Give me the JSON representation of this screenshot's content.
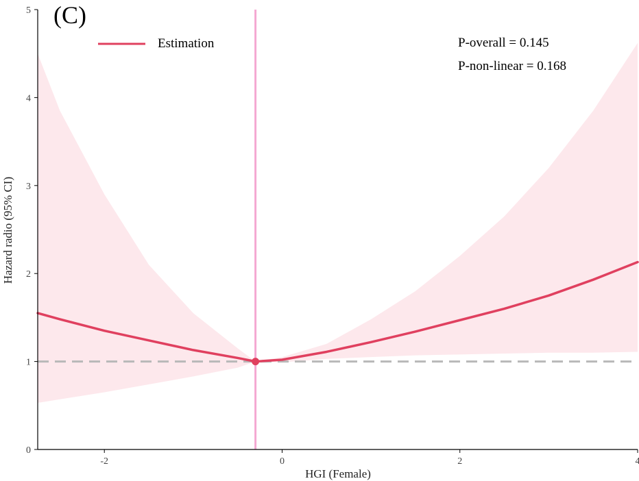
{
  "chart_data": {
    "type": "line",
    "panel_label": "(C)",
    "xlabel": "HGI (Female)",
    "ylabel": "Hazard  radio (95% CI)",
    "xlim": [
      -2.75,
      4.0
    ],
    "ylim": [
      0,
      5
    ],
    "x_ticks": [
      {
        "value": -2,
        "label": "-2"
      },
      {
        "value": 0,
        "label": "0"
      },
      {
        "value": 2,
        "label": "2"
      },
      {
        "value": 4,
        "label": "4"
      }
    ],
    "y_ticks": [
      {
        "value": 0,
        "label": "0"
      },
      {
        "value": 1,
        "label": "1"
      },
      {
        "value": 2,
        "label": "2"
      },
      {
        "value": 3,
        "label": "3"
      },
      {
        "value": 4,
        "label": "4"
      },
      {
        "value": 5,
        "label": "5"
      }
    ],
    "reference_x": -0.3,
    "reference_y": 1,
    "reference_point": {
      "x": -0.3,
      "y": 1.0
    },
    "legend": [
      {
        "name": "Estimation",
        "color": "#e0405f"
      }
    ],
    "annotations": [
      "P-overall = 0.145",
      "P-non-linear = 0.168"
    ],
    "series": [
      {
        "name": "Estimation",
        "color": "#e0405f",
        "x": [
          -2.75,
          -2.5,
          -2.0,
          -1.5,
          -1.0,
          -0.5,
          -0.3,
          0.0,
          0.5,
          1.0,
          1.5,
          2.0,
          2.5,
          3.0,
          3.5,
          4.0
        ],
        "y": [
          1.55,
          1.48,
          1.35,
          1.24,
          1.13,
          1.04,
          1.0,
          1.02,
          1.11,
          1.22,
          1.34,
          1.47,
          1.6,
          1.75,
          1.93,
          2.13
        ]
      }
    ],
    "ci_band": {
      "color": "#fde8ec",
      "x": [
        -2.75,
        -2.5,
        -2.0,
        -1.5,
        -1.0,
        -0.5,
        -0.3,
        0.0,
        0.5,
        1.0,
        1.5,
        2.0,
        2.5,
        3.0,
        3.5,
        4.0
      ],
      "lower": [
        0.53,
        0.57,
        0.65,
        0.74,
        0.83,
        0.93,
        1.0,
        0.99,
        1.03,
        1.05,
        1.07,
        1.08,
        1.09,
        1.1,
        1.1,
        1.11
      ],
      "upper": [
        4.5,
        3.85,
        2.9,
        2.1,
        1.55,
        1.15,
        1.0,
        1.05,
        1.2,
        1.48,
        1.8,
        2.2,
        2.65,
        3.2,
        3.85,
        4.62
      ]
    }
  }
}
